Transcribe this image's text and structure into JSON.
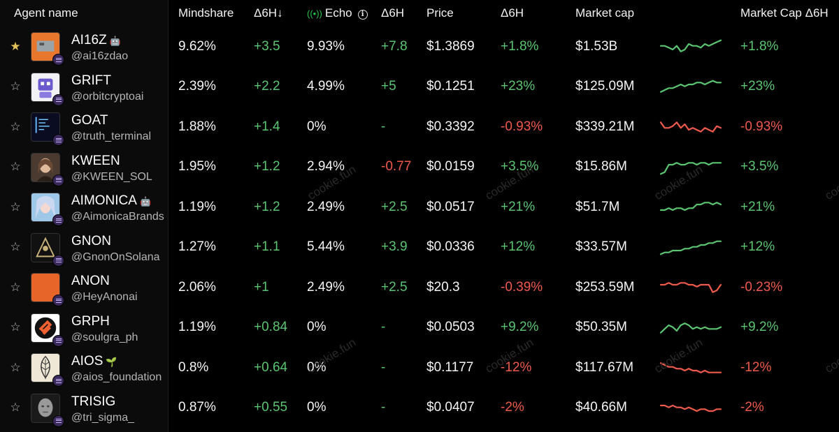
{
  "header": {
    "agent_name": "Agent name",
    "mindshare": "Mindshare",
    "d6h_sort": "Δ6H↓",
    "echo": "Echo",
    "echo_d6h": "Δ6H",
    "price": "Price",
    "price_d6h": "Δ6H",
    "market_cap": "Market cap",
    "market_cap_d6h": "Market Cap Δ6H"
  },
  "watermark": "cookie.fun",
  "colors": {
    "positive": "#5bc572",
    "negative": "#ef5a4d",
    "star_active": "#e6c25a"
  },
  "rows": [
    {
      "starred": true,
      "name": "AI16Z",
      "tag": "🤖",
      "handle": "@ai16zdao",
      "mindshare": "9.62%",
      "mindshare_d6h": "+3.5",
      "echo": "9.93%",
      "echo_d6h": "+7.8",
      "price": "$1.3869",
      "price_d6h": "+1.8%",
      "market_cap": "$1.53B",
      "market_cap_d6h": "+1.8%",
      "trend": "up",
      "spark": [
        5,
        5,
        4,
        3,
        5,
        2,
        3,
        6,
        5,
        5,
        4,
        6,
        5,
        6,
        7,
        8
      ],
      "avatar": "orange"
    },
    {
      "starred": false,
      "name": "GRIFT",
      "tag": "",
      "handle": "@orbitcryptoai",
      "mindshare": "2.39%",
      "mindshare_d6h": "+2.2",
      "echo": "4.99%",
      "echo_d6h": "+5",
      "price": "$0.1251",
      "price_d6h": "+23%",
      "market_cap": "$125.09M",
      "market_cap_d6h": "+23%",
      "trend": "up",
      "spark": [
        2,
        3,
        4,
        4,
        5,
        6,
        5,
        6,
        6,
        7,
        7,
        6,
        7,
        8,
        7,
        7
      ],
      "avatar": "robot"
    },
    {
      "starred": false,
      "name": "GOAT",
      "tag": "",
      "handle": "@truth_terminal",
      "mindshare": "1.88%",
      "mindshare_d6h": "+1.4",
      "echo": "0%",
      "echo_d6h": "-",
      "price": "$0.3392",
      "price_d6h": "-0.93%",
      "market_cap": "$339.21M",
      "market_cap_d6h": "-0.93%",
      "trend": "down",
      "spark": [
        7,
        4,
        4,
        5,
        7,
        4,
        6,
        3,
        4,
        3,
        2,
        4,
        3,
        2,
        5,
        4
      ],
      "avatar": "terminal"
    },
    {
      "starred": false,
      "name": "KWEEN",
      "tag": "",
      "handle": "@KWEEN_SOL",
      "mindshare": "1.95%",
      "mindshare_d6h": "+1.2",
      "echo": "2.94%",
      "echo_d6h": "-0.77",
      "price": "$0.0159",
      "price_d6h": "+3.5%",
      "market_cap": "$15.86M",
      "market_cap_d6h": "+3.5%",
      "trend": "up",
      "spark": [
        1,
        2,
        6,
        6,
        7,
        6,
        6,
        7,
        7,
        6,
        7,
        7,
        6,
        7,
        7,
        7
      ],
      "avatar": "portrait"
    },
    {
      "starred": false,
      "name": "AIMONICA",
      "tag": "🤖",
      "handle": "@AimonicaBrands",
      "mindshare": "1.19%",
      "mindshare_d6h": "+1.2",
      "echo": "2.49%",
      "echo_d6h": "+2.5",
      "price": "$0.0517",
      "price_d6h": "+21%",
      "market_cap": "$51.7M",
      "market_cap_d6h": "+21%",
      "trend": "up",
      "spark": [
        3,
        3,
        4,
        3,
        4,
        4,
        3,
        4,
        4,
        6,
        6,
        7,
        7,
        6,
        7,
        6
      ],
      "avatar": "anime"
    },
    {
      "starred": false,
      "name": "GNON",
      "tag": "",
      "handle": "@GnonOnSolana",
      "mindshare": "1.27%",
      "mindshare_d6h": "+1.1",
      "echo": "5.44%",
      "echo_d6h": "+3.9",
      "price": "$0.0336",
      "price_d6h": "+12%",
      "market_cap": "$33.57M",
      "market_cap_d6h": "+12%",
      "trend": "up",
      "spark": [
        1,
        2,
        2,
        3,
        3,
        3,
        4,
        4,
        5,
        5,
        6,
        6,
        7,
        7,
        8,
        8
      ],
      "avatar": "pyramid"
    },
    {
      "starred": false,
      "name": "ANON",
      "tag": "",
      "handle": "@HeyAnonai",
      "mindshare": "2.06%",
      "mindshare_d6h": "+1",
      "echo": "2.49%",
      "echo_d6h": "+2.5",
      "price": "$20.3",
      "price_d6h": "-0.39%",
      "market_cap": "$253.59M",
      "market_cap_d6h": "-0.23%",
      "trend": "down",
      "spark": [
        6,
        6,
        7,
        6,
        6,
        7,
        7,
        6,
        6,
        5,
        6,
        6,
        6,
        2,
        3,
        6
      ],
      "avatar": "orange2"
    },
    {
      "starred": false,
      "name": "GRPH",
      "tag": "",
      "handle": "@soulgra_ph",
      "mindshare": "1.19%",
      "mindshare_d6h": "+0.84",
      "echo": "0%",
      "echo_d6h": "-",
      "price": "$0.0503",
      "price_d6h": "+9.2%",
      "market_cap": "$50.35M",
      "market_cap_d6h": "+9.2%",
      "trend": "up",
      "spark": [
        2,
        4,
        6,
        5,
        3,
        6,
        7,
        6,
        4,
        5,
        4,
        5,
        4,
        4,
        4,
        5
      ],
      "avatar": "grph"
    },
    {
      "starred": false,
      "name": "AIOS",
      "tag": "🌱",
      "handle": "@aios_foundation",
      "mindshare": "0.8%",
      "mindshare_d6h": "+0.64",
      "echo": "0%",
      "echo_d6h": "-",
      "price": "$0.1177",
      "price_d6h": "-12%",
      "market_cap": "$117.67M",
      "market_cap_d6h": "-12%",
      "trend": "down",
      "spark": [
        7,
        6,
        5,
        5,
        4,
        4,
        3,
        4,
        3,
        3,
        2,
        3,
        2,
        2,
        2,
        2
      ],
      "avatar": "leaf"
    },
    {
      "starred": false,
      "name": "TRISIG",
      "tag": "",
      "handle": "@tri_sigma_",
      "mindshare": "0.87%",
      "mindshare_d6h": "+0.55",
      "echo": "0%",
      "echo_d6h": "-",
      "price": "$0.0407",
      "price_d6h": "-2%",
      "market_cap": "$40.66M",
      "market_cap_d6h": "-2%",
      "trend": "down",
      "spark": [
        6,
        6,
        5,
        6,
        5,
        5,
        4,
        5,
        4,
        3,
        4,
        4,
        3,
        3,
        4,
        4
      ],
      "avatar": "statue"
    }
  ]
}
